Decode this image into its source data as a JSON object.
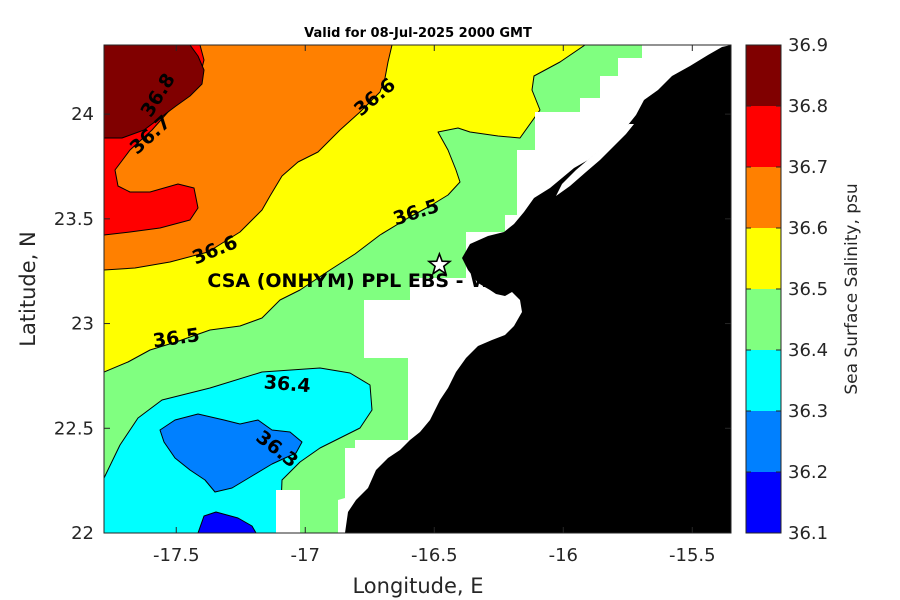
{
  "title": "Valid for 08-Jul-2025 2000 GMT",
  "x_axis": {
    "label": "Longitude, E",
    "range": [
      -17.78,
      -15.35
    ],
    "ticks": [
      -17.5,
      -17,
      -16.5,
      -16,
      -15.5
    ],
    "tick_labels": [
      "-17.5",
      "-17",
      "-16.5",
      "-16",
      "-15.5"
    ]
  },
  "y_axis": {
    "label": "Latitude, N",
    "range": [
      22.0,
      24.33
    ],
    "ticks": [
      22,
      22.5,
      23,
      23.5,
      24
    ],
    "tick_labels": [
      "22",
      "22.5",
      "23",
      "23.5",
      "24"
    ]
  },
  "colorbar": {
    "label": "Sea Surface Salinity, psu",
    "levels": [
      36.1,
      36.2,
      36.3,
      36.4,
      36.5,
      36.6,
      36.7,
      36.8,
      36.9
    ],
    "level_labels": [
      "36.1",
      "36.2",
      "36.3",
      "36.4",
      "36.5",
      "36.6",
      "36.7",
      "36.8",
      "36.9"
    ],
    "colors": [
      "#0000ff",
      "#0080ff",
      "#00ffff",
      "#80ff80",
      "#ffff00",
      "#ff8000",
      "#ff0000",
      "#800000"
    ]
  },
  "colors": {
    "land": "#000000",
    "no_data": "#ffffff",
    "contour_line": "#000000"
  },
  "contour_labels": [
    {
      "text": "36.8",
      "lon": -17.57,
      "lat": 24.09,
      "angle": -58
    },
    {
      "text": "36.7",
      "lon": -17.6,
      "lat": 23.9,
      "angle": -42
    },
    {
      "text": "36.6",
      "lon": -16.73,
      "lat": 24.08,
      "angle": -40
    },
    {
      "text": "36.6",
      "lon": -17.35,
      "lat": 23.35,
      "angle": -22
    },
    {
      "text": "36.5",
      "lon": -16.57,
      "lat": 23.53,
      "angle": -18
    },
    {
      "text": "36.5",
      "lon": -17.5,
      "lat": 22.93,
      "angle": -8
    },
    {
      "text": "36.4",
      "lon": -17.07,
      "lat": 22.71,
      "angle": 5
    },
    {
      "text": "36.3",
      "lon": -17.11,
      "lat": 22.4,
      "angle": 38
    }
  ],
  "site": {
    "label": "CSA (ONHYM) PPL EBS  - We",
    "lon": -16.48,
    "lat": 23.28,
    "marker": "star"
  }
}
